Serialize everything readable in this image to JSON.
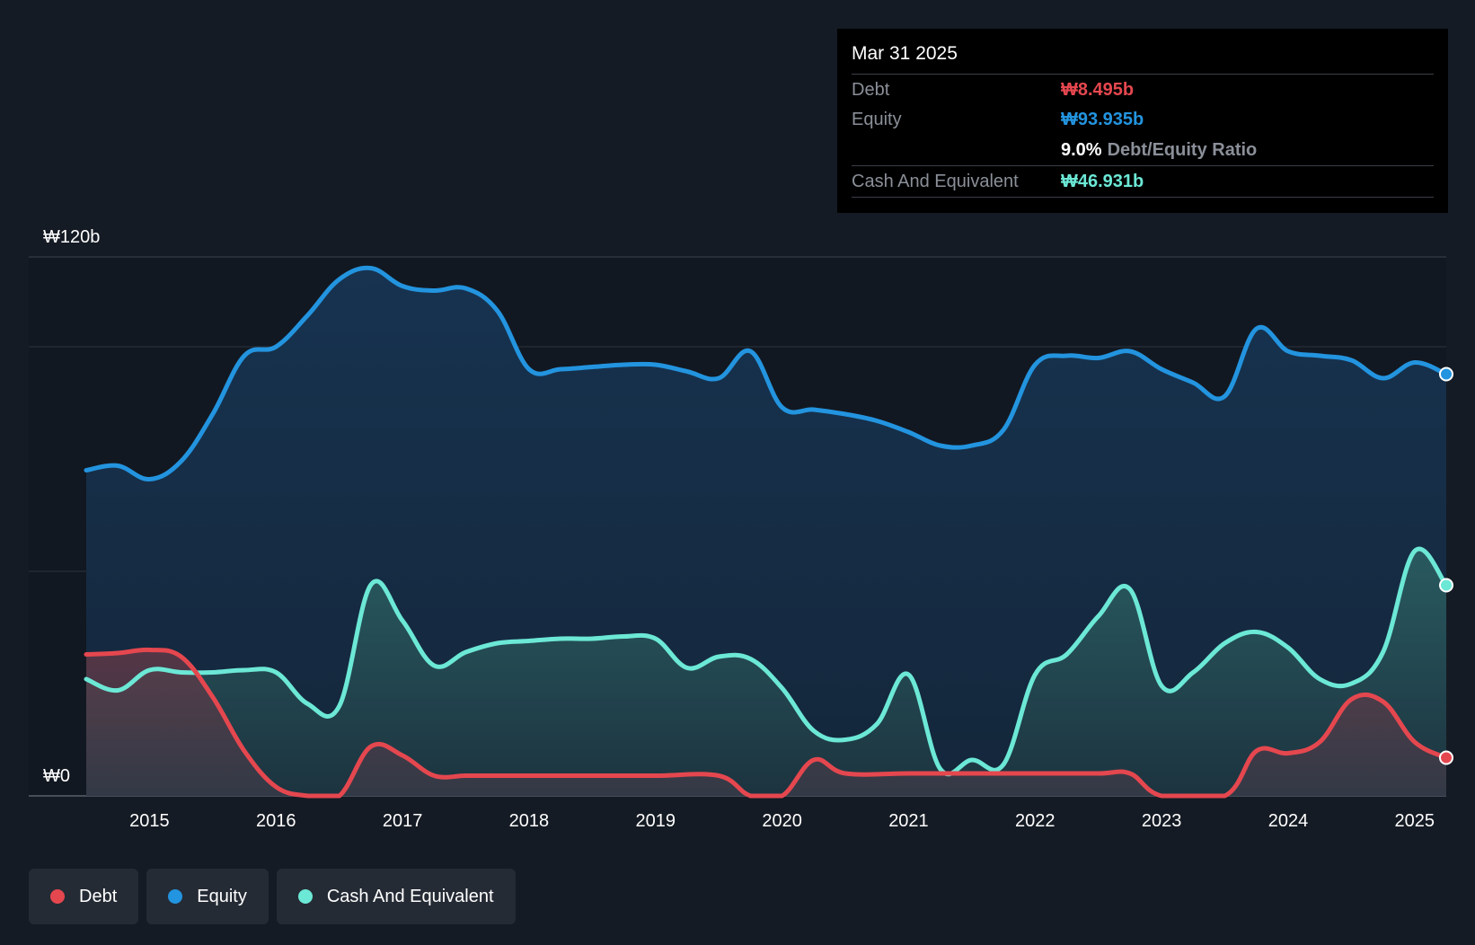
{
  "tooltip": {
    "date": "Mar 31 2025",
    "debt_label": "Debt",
    "debt_value": "₩8.495b",
    "equity_label": "Equity",
    "equity_value": "₩93.935b",
    "ratio_value": "9.0%",
    "ratio_label": "Debt/Equity Ratio",
    "cash_label": "Cash And Equivalent",
    "cash_value": "₩46.931b"
  },
  "legend": {
    "debt": "Debt",
    "equity": "Equity",
    "cash": "Cash And Equivalent"
  },
  "colors": {
    "background": "#151b24",
    "debt": "#e5474f",
    "equity": "#2394df",
    "cash": "#6ce8d6"
  },
  "chart_data": {
    "type": "area",
    "title": "",
    "ylabel_top": "₩120b",
    "ylabel_bottom": "₩0",
    "ylim": [
      0,
      120
    ],
    "xlim": [
      2014.5,
      2025.25
    ],
    "gridlines": [
      0,
      50,
      100,
      120
    ],
    "x_ticks": [
      "2015",
      "2016",
      "2017",
      "2018",
      "2019",
      "2020",
      "2021",
      "2022",
      "2023",
      "2024",
      "2025"
    ],
    "series": [
      {
        "name": "Equity",
        "points": [
          [
            2014.5,
            72.5
          ],
          [
            2014.75,
            73.5
          ],
          [
            2015.0,
            70.5
          ],
          [
            2015.25,
            74.5
          ],
          [
            2015.5,
            85
          ],
          [
            2015.75,
            98
          ],
          [
            2016.0,
            100
          ],
          [
            2016.25,
            107
          ],
          [
            2016.5,
            115
          ],
          [
            2016.75,
            117.5
          ],
          [
            2017.0,
            113.5
          ],
          [
            2017.25,
            112.5
          ],
          [
            2017.5,
            113
          ],
          [
            2017.75,
            108
          ],
          [
            2018.0,
            95
          ],
          [
            2018.25,
            95
          ],
          [
            2018.5,
            95.5
          ],
          [
            2018.75,
            96
          ],
          [
            2019.0,
            96
          ],
          [
            2019.25,
            94.5
          ],
          [
            2019.5,
            93
          ],
          [
            2019.75,
            99
          ],
          [
            2020.0,
            86.5
          ],
          [
            2020.25,
            86
          ],
          [
            2020.5,
            85
          ],
          [
            2020.75,
            83.5
          ],
          [
            2021.0,
            81
          ],
          [
            2021.25,
            78
          ],
          [
            2021.5,
            78
          ],
          [
            2021.75,
            81.5
          ],
          [
            2022.0,
            96
          ],
          [
            2022.25,
            98
          ],
          [
            2022.5,
            97.5
          ],
          [
            2022.75,
            99
          ],
          [
            2023.0,
            95
          ],
          [
            2023.25,
            92
          ],
          [
            2023.5,
            89
          ],
          [
            2023.75,
            104
          ],
          [
            2024.0,
            99
          ],
          [
            2024.25,
            98
          ],
          [
            2024.5,
            97
          ],
          [
            2024.75,
            93
          ],
          [
            2025.0,
            96.5
          ],
          [
            2025.25,
            93.9
          ]
        ]
      },
      {
        "name": "Cash And Equivalent",
        "points": [
          [
            2014.5,
            26
          ],
          [
            2014.75,
            23.5
          ],
          [
            2015.0,
            28
          ],
          [
            2015.25,
            27.5
          ],
          [
            2015.5,
            27.5
          ],
          [
            2015.75,
            28
          ],
          [
            2016.0,
            27.5
          ],
          [
            2016.25,
            20.5
          ],
          [
            2016.5,
            20
          ],
          [
            2016.75,
            47
          ],
          [
            2017.0,
            39
          ],
          [
            2017.25,
            29
          ],
          [
            2017.5,
            32
          ],
          [
            2017.75,
            34
          ],
          [
            2018.0,
            34.5
          ],
          [
            2018.25,
            35
          ],
          [
            2018.5,
            35
          ],
          [
            2018.75,
            35.5
          ],
          [
            2019.0,
            35
          ],
          [
            2019.25,
            28.5
          ],
          [
            2019.5,
            31
          ],
          [
            2019.75,
            30.5
          ],
          [
            2020.0,
            24
          ],
          [
            2020.25,
            14.5
          ],
          [
            2020.5,
            12.5
          ],
          [
            2020.75,
            16
          ],
          [
            2021.0,
            27
          ],
          [
            2021.25,
            6
          ],
          [
            2021.5,
            8
          ],
          [
            2021.75,
            7
          ],
          [
            2022.0,
            27
          ],
          [
            2022.25,
            31.5
          ],
          [
            2022.5,
            40
          ],
          [
            2022.75,
            46
          ],
          [
            2023.0,
            24.5
          ],
          [
            2023.25,
            27.5
          ],
          [
            2023.5,
            34
          ],
          [
            2023.75,
            36.5
          ],
          [
            2024.0,
            33
          ],
          [
            2024.25,
            26
          ],
          [
            2024.5,
            25
          ],
          [
            2024.75,
            32
          ],
          [
            2025.0,
            54.5
          ],
          [
            2025.25,
            46.9
          ]
        ]
      },
      {
        "name": "Debt",
        "points": [
          [
            2014.5,
            31.5
          ],
          [
            2014.75,
            31.8
          ],
          [
            2015.0,
            32.5
          ],
          [
            2015.25,
            31
          ],
          [
            2015.5,
            22
          ],
          [
            2015.75,
            10
          ],
          [
            2016.0,
            2
          ],
          [
            2016.25,
            0
          ],
          [
            2016.5,
            0
          ],
          [
            2016.75,
            11
          ],
          [
            2017.0,
            9
          ],
          [
            2017.25,
            4.5
          ],
          [
            2017.5,
            4.5
          ],
          [
            2017.75,
            4.5
          ],
          [
            2018.0,
            4.5
          ],
          [
            2018.5,
            4.5
          ],
          [
            2019.0,
            4.5
          ],
          [
            2019.5,
            4.5
          ],
          [
            2019.75,
            0
          ],
          [
            2020.0,
            0
          ],
          [
            2020.25,
            8
          ],
          [
            2020.5,
            5
          ],
          [
            2021.0,
            5
          ],
          [
            2021.5,
            5
          ],
          [
            2022.0,
            5
          ],
          [
            2022.5,
            5
          ],
          [
            2022.75,
            5
          ],
          [
            2023.0,
            0
          ],
          [
            2023.5,
            0
          ],
          [
            2023.75,
            10
          ],
          [
            2024.0,
            9.5
          ],
          [
            2024.25,
            12
          ],
          [
            2024.5,
            21.5
          ],
          [
            2024.75,
            21
          ],
          [
            2025.0,
            12
          ],
          [
            2025.25,
            8.5
          ]
        ]
      }
    ]
  }
}
